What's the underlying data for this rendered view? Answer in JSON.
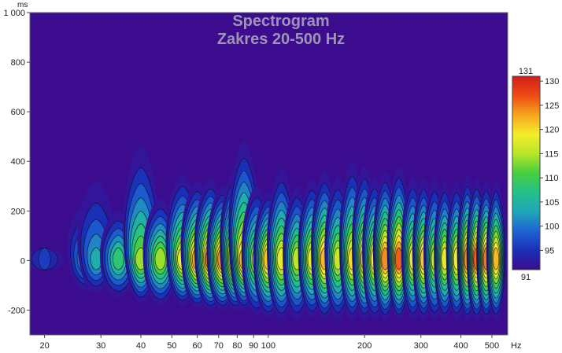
{
  "chart_data": {
    "type": "heatmap",
    "title": "Spectrogram",
    "subtitle": "Zakres 20-500 Hz",
    "x_unit": "Hz",
    "y_unit": "ms",
    "x_scale": "log",
    "xlim": [
      18,
      560
    ],
    "ylim": [
      -300,
      1000
    ],
    "x_ticks": [
      {
        "value": 20,
        "label": "20"
      },
      {
        "value": 30,
        "label": "30"
      },
      {
        "value": 40,
        "label": "40"
      },
      {
        "value": 50,
        "label": "50"
      },
      {
        "value": 60,
        "label": "60"
      },
      {
        "value": 70,
        "label": "70"
      },
      {
        "value": 80,
        "label": "80"
      },
      {
        "value": 90,
        "label": "90"
      },
      {
        "value": 100,
        "label": "100"
      },
      {
        "value": 200,
        "label": "200"
      },
      {
        "value": 300,
        "label": "300"
      },
      {
        "value": 400,
        "label": "400"
      },
      {
        "value": 500,
        "label": "500"
      }
    ],
    "y_ticks": [
      {
        "value": 1000,
        "label": "1 000"
      },
      {
        "value": 800,
        "label": "800"
      },
      {
        "value": 600,
        "label": "600"
      },
      {
        "value": 400,
        "label": "400"
      },
      {
        "value": 200,
        "label": "200"
      },
      {
        "value": 0,
        "label": "0"
      },
      {
        "value": -200,
        "label": "-200"
      }
    ],
    "colorbar": {
      "min": 91,
      "max": 131,
      "max_label": "131",
      "min_label": "91",
      "ticks": [
        "130",
        "125",
        "120",
        "115",
        "110",
        "105",
        "100",
        "95"
      ],
      "tick_values": [
        130,
        125,
        120,
        115,
        110,
        105,
        100,
        95
      ],
      "stops": [
        "#3b0c8e",
        "#1a2fb8",
        "#1d64d2",
        "#20a6b8",
        "#23c08a",
        "#47cf3f",
        "#b8e628",
        "#f4ee2c",
        "#f6a41e",
        "#ee4b14",
        "#d21e1a"
      ]
    },
    "colors": {
      "background": "#3b0c8e",
      "ridge_low": "#2a3ca8",
      "ridge_mid": "#2ab5a0",
      "ridge_high": "#a8de32",
      "peak": "#f08a1c",
      "hot": "#e24a16"
    },
    "grid": false,
    "legend": "right colorbar",
    "peaks": [
      {
        "f": 20,
        "t_top": 50,
        "t_bot": -40,
        "level": 96
      },
      {
        "f": 27,
        "t_top": 230,
        "t_bot": -120,
        "level": 103
      },
      {
        "f": 29,
        "t_top": 320,
        "t_bot": -130,
        "level": 104
      },
      {
        "f": 34,
        "t_top": 200,
        "t_bot": -150,
        "level": 108
      },
      {
        "f": 40,
        "t_top": 460,
        "t_bot": -170,
        "level": 114
      },
      {
        "f": 46,
        "t_top": 250,
        "t_bot": -180,
        "level": 114
      },
      {
        "f": 54,
        "t_top": 350,
        "t_bot": -180,
        "level": 118
      },
      {
        "f": 60,
        "t_top": 320,
        "t_bot": -190,
        "level": 123
      },
      {
        "f": 66,
        "t_top": 330,
        "t_bot": -200,
        "level": 125
      },
      {
        "f": 72,
        "t_top": 300,
        "t_bot": -200,
        "level": 124
      },
      {
        "f": 79,
        "t_top": 370,
        "t_bot": -200,
        "level": 124
      },
      {
        "f": 84,
        "t_top": 480,
        "t_bot": -200,
        "level": 122
      },
      {
        "f": 92,
        "t_top": 300,
        "t_bot": -220,
        "level": 116
      },
      {
        "f": 100,
        "t_top": 280,
        "t_bot": -230,
        "level": 121
      },
      {
        "f": 110,
        "t_top": 370,
        "t_bot": -240,
        "level": 118
      },
      {
        "f": 123,
        "t_top": 300,
        "t_bot": -240,
        "level": 115
      },
      {
        "f": 137,
        "t_top": 330,
        "t_bot": -230,
        "level": 118
      },
      {
        "f": 150,
        "t_top": 360,
        "t_bot": -240,
        "level": 122
      },
      {
        "f": 165,
        "t_top": 340,
        "t_bot": -240,
        "level": 116
      },
      {
        "f": 183,
        "t_top": 400,
        "t_bot": -240,
        "level": 120
      },
      {
        "f": 200,
        "t_top": 380,
        "t_bot": -240,
        "level": 121
      },
      {
        "f": 215,
        "t_top": 340,
        "t_bot": -240,
        "level": 119
      },
      {
        "f": 232,
        "t_top": 360,
        "t_bot": -240,
        "level": 124
      },
      {
        "f": 256,
        "t_top": 380,
        "t_bot": -240,
        "level": 126
      },
      {
        "f": 283,
        "t_top": 340,
        "t_bot": -240,
        "level": 118
      },
      {
        "f": 306,
        "t_top": 330,
        "t_bot": -240,
        "level": 121
      },
      {
        "f": 331,
        "t_top": 330,
        "t_bot": -240,
        "level": 116
      },
      {
        "f": 356,
        "t_top": 320,
        "t_bot": -240,
        "level": 118
      },
      {
        "f": 388,
        "t_top": 320,
        "t_bot": -240,
        "level": 119
      },
      {
        "f": 419,
        "t_top": 340,
        "t_bot": -240,
        "level": 124
      },
      {
        "f": 448,
        "t_top": 330,
        "t_bot": -240,
        "level": 126
      },
      {
        "f": 480,
        "t_top": 320,
        "t_bot": -240,
        "level": 125
      },
      {
        "f": 515,
        "t_top": 320,
        "t_bot": -240,
        "level": 122
      }
    ]
  }
}
